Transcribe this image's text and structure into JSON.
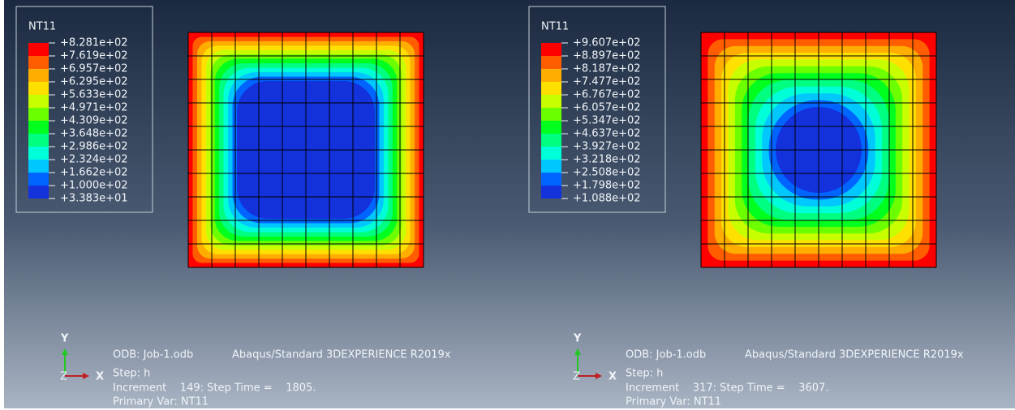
{
  "panels": [
    {
      "legend": {
        "title": "NT11",
        "labels": [
          "+8.281e+02",
          "+7.619e+02",
          "+6.957e+02",
          "+6.295e+02",
          "+5.633e+02",
          "+4.971e+02",
          "+4.309e+02",
          "+3.648e+02",
          "+2.986e+02",
          "+2.324e+02",
          "+1.662e+02",
          "+1.000e+02",
          "+3.383e+01"
        ]
      },
      "axes": {
        "y": "Y",
        "x": "X",
        "z": "Z"
      },
      "info": {
        "odb": "ODB: Job-1.odb",
        "product": "Abaqus/Standard 3DEXPERIENCE R2019x",
        "step": "Step: h",
        "increment": "Increment    149: Step Time =    1805.",
        "primary": "Primary Var: NT11"
      }
    },
    {
      "legend": {
        "title": "NT11",
        "labels": [
          "+9.607e+02",
          "+8.897e+02",
          "+8.187e+02",
          "+7.477e+02",
          "+6.767e+02",
          "+6.057e+02",
          "+5.347e+02",
          "+4.637e+02",
          "+3.927e+02",
          "+3.218e+02",
          "+2.508e+02",
          "+1.798e+02",
          "+1.088e+02"
        ]
      },
      "axes": {
        "y": "Y",
        "x": "X",
        "z": "Z"
      },
      "info": {
        "odb": "ODB: Job-1.odb",
        "product": "Abaqus/Standard 3DEXPERIENCE R2019x",
        "step": "Step: h",
        "increment": "Increment    317: Step Time =    3607.",
        "primary": "Primary Var: NT11"
      }
    }
  ]
}
